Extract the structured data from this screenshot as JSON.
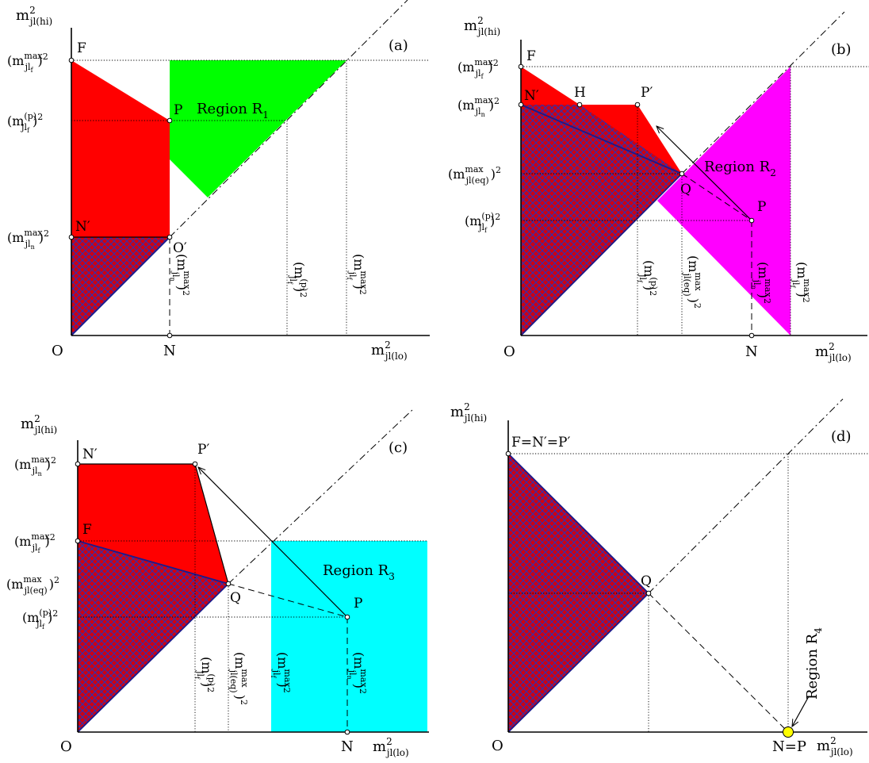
{
  "colors": {
    "red": "#ff0000",
    "hatch": "#3030b0",
    "region_r1": "#00ff00",
    "region_r2": "#ff00ff",
    "region_r3": "#00ffff",
    "region_r4": "#ffff00"
  },
  "panels": {
    "a": {
      "tag": "(a)",
      "y_axis": "m²jl(hi)",
      "x_axis": "m²jl(lo)",
      "origin": "O",
      "y_ticks": [
        "(m^max_jlf)²",
        "(m^(p)_jlf)²",
        "(m^max_jln)²"
      ],
      "x_ticks": [
        "(m^max_jln)²",
        "(m^(p)_jlf)²",
        "(m^max_jlf)²"
      ],
      "points": [
        "F",
        "P",
        "N′",
        "O′",
        "N"
      ],
      "region": "Region R1"
    },
    "b": {
      "tag": "(b)",
      "y_axis": "m²jl(hi)",
      "x_axis": "m²jl(lo)",
      "origin": "O",
      "y_ticks": [
        "(m^max_jlf)²",
        "(m^max_jln)²",
        "(m^max_jl(eq))²",
        "(m^(p)_jlf)²"
      ],
      "x_ticks": [
        "(m^(p)_jlf)²",
        "(m^max_jl(eq))²",
        "(m^max_jln)²",
        "(m^max_jlf)²"
      ],
      "points": [
        "F",
        "H",
        "P′",
        "N′",
        "Q",
        "P",
        "N"
      ],
      "region": "Region R2"
    },
    "c": {
      "tag": "(c)",
      "y_axis": "m²jl(hi)",
      "x_axis": "m²jl(lo)",
      "origin": "O",
      "y_ticks": [
        "(m^max_jln)²",
        "(m^max_jlf)²",
        "(m^max_jl(eq))²",
        "(m^(p)_jlf)²"
      ],
      "x_ticks": [
        "(m^(p)_jlf)²",
        "(m^max_jl(eq))²",
        "(m^max_jlf)²",
        "(m^max_jln)²"
      ],
      "points": [
        "N′",
        "P′",
        "F",
        "Q",
        "P",
        "N"
      ],
      "region": "Region R3"
    },
    "d": {
      "tag": "(d)",
      "y_axis": "m²jl(hi)",
      "x_axis": "m²jl(lo)",
      "origin": "O",
      "points": [
        "F=N′=P′",
        "Q",
        "N=P"
      ],
      "region": "Region R4"
    }
  }
}
